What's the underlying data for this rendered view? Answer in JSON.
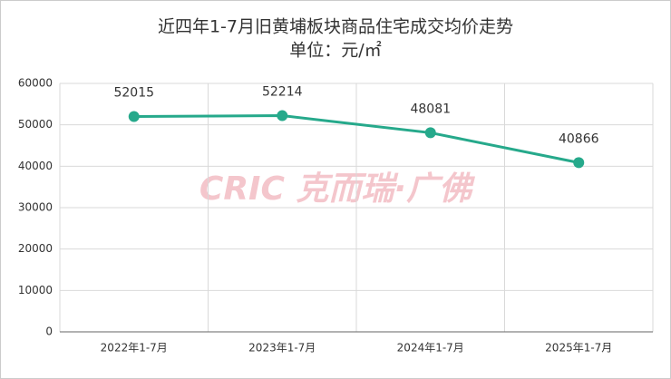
{
  "chart_data": {
    "type": "line",
    "title": "近四年1-7月旧黄埔板块商品住宅成交均价走势",
    "subtitle": "单位：元/㎡",
    "categories": [
      "2022年1-7月",
      "2023年1-7月",
      "2024年1-7月",
      "2025年1-7月"
    ],
    "series": [
      {
        "name": "成交均价",
        "color": "#26a98b",
        "values": [
          52015,
          52214,
          48081,
          40866
        ]
      }
    ],
    "ylim": [
      0,
      60000
    ],
    "yticks": [
      0,
      10000,
      20000,
      30000,
      40000,
      50000,
      60000
    ],
    "grid": true,
    "watermark": "CRIC 克而瑞·广佛"
  }
}
